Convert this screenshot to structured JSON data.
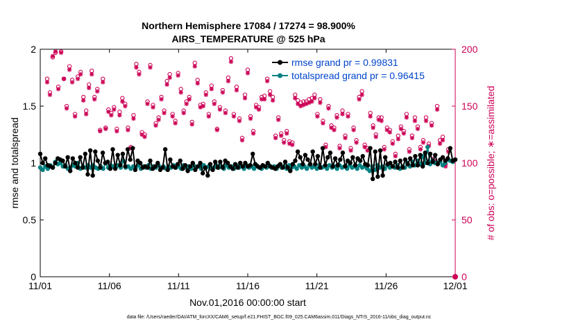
{
  "chart_data": {
    "type": "line",
    "title": "Northern Hemisphere 17084 / 17274 = 98.900%",
    "subtitle": "AIRS_TEMPERATURE @ 525 hPa",
    "xlabel": "Nov.01,2016 00:00:00 start",
    "ylabel": "rmse and totalspread",
    "ylabel_right": "# of obs: o=possible; ∗=assimilated",
    "x_ticks": [
      "11/01",
      "11/06",
      "11/11",
      "11/16",
      "11/21",
      "11/26",
      "12/01"
    ],
    "x_range_days": [
      0,
      30
    ],
    "ylim": [
      0,
      2
    ],
    "y_ticks": [
      "0",
      "0.5",
      "1",
      "1.5",
      "2"
    ],
    "ylim_right": [
      0,
      200
    ],
    "y_ticks_right": [
      "0",
      "50",
      "100",
      "150",
      "200"
    ],
    "footnote": "data file: /Users/raeder/DAI/ATM_forcXX/CAM6_setup/f.e21.FHIST_BGC.f09_025.CAM6assim.011/Diags_NTrS_2016-11/obs_diag_output.nc",
    "legend": [
      "rmse grand pr = 0.99831",
      "totalspread grand pr = 0.96415"
    ],
    "colors": {
      "rmse": "#000000",
      "spread": "#008080",
      "obs": "#cc0055"
    },
    "series": [
      {
        "name": "rmse",
        "values": [
          1.08,
          1.0,
          1.04,
          0.98,
          0.97,
          0.96,
          1.0,
          1.04,
          1.03,
          1.02,
          0.97,
          1.05,
          0.93,
          1.04,
          1.0,
          0.96,
          1.05,
          0.96,
          1.08,
          0.9,
          1.11,
          0.89,
          1.1,
          1.02,
          0.96,
          1.09,
          1.0,
          1.01,
          0.95,
          1.12,
          0.95,
          1.07,
          0.98,
          1.08,
          0.97,
          1.12,
          1.03,
          1.13,
          0.94,
          1.02,
          1.0,
          0.96,
          0.97,
          0.96,
          1.02,
          0.95,
          0.97,
          1.0,
          0.94,
          0.96,
          1.12,
          0.94,
          1.03,
          0.97,
          0.96,
          0.99,
          1.02,
          0.95,
          0.98,
          0.93,
          0.97,
          1.0,
          0.94,
          0.97,
          1.0,
          0.91,
          0.96,
          0.89,
          0.99,
          0.94,
          1.01,
          0.96,
          1.01,
          0.96,
          1.02,
          1.0,
          0.97,
          0.95,
          0.99,
          0.96,
          1.0,
          0.97,
          1.0,
          0.97,
          0.98,
          1.08,
          0.99,
          0.97,
          0.96,
          0.98,
          0.97,
          1.0,
          0.97,
          0.96,
          0.95,
          0.97,
          0.99,
          0.96,
          1.01,
          0.96,
          0.93,
          0.99,
          1.02,
          1.1,
          1.05,
          0.99,
          1.07,
          1.03,
          0.99,
          1.1,
          0.99,
          1.06,
          0.96,
          1.13,
          0.98,
          1.05,
          1.09,
          0.97,
          1.04,
          0.98,
          1.03,
          1.09,
          0.97,
          1.02,
          1.0,
          1.05,
          0.98,
          1.04,
          1.02,
          1.06,
          0.99,
          0.98,
          1.13,
          0.86,
          1.1,
          0.88,
          1.11,
          0.89,
          1.05,
          0.99,
          1.0,
          0.97,
          1.01,
          0.96,
          1.02,
          0.96,
          1.03,
          0.99,
          1.04,
          0.98,
          1.06,
          0.98,
          1.07,
          0.97,
          1.09,
          1.0,
          1.08,
          1.01,
          1.07,
          0.99,
          1.03,
          1.05,
          1.02,
          1.04,
          1.13,
          1.02,
          1.03
        ]
      },
      {
        "name": "totalspread",
        "values": [
          0.96,
          0.94,
          0.97,
          0.95,
          0.98,
          0.96,
          1.01,
          0.99,
          1.0,
          0.97,
          0.98,
          0.95,
          0.96,
          0.98,
          0.97,
          1.0,
          0.95,
          0.97,
          0.96,
          0.98,
          0.96,
          0.98,
          0.96,
          0.95,
          0.97,
          0.95,
          1.0,
          0.96,
          0.98,
          0.97,
          0.96,
          0.98,
          0.96,
          1.02,
          0.96,
          0.97,
          0.95,
          0.97,
          0.96,
          0.98,
          0.95,
          0.97,
          0.96,
          0.98,
          0.95,
          0.97,
          0.96,
          0.98,
          0.96,
          0.97,
          0.95,
          0.97,
          0.96,
          0.98,
          0.96,
          0.97,
          0.95,
          0.98,
          0.96,
          0.97,
          0.95,
          0.98,
          0.96,
          0.97,
          0.95,
          0.98,
          0.96,
          0.97,
          0.95,
          0.96,
          0.98,
          0.96,
          0.97,
          0.95,
          0.98,
          0.96,
          0.97,
          0.95,
          0.98,
          0.96,
          0.97,
          0.95,
          0.98,
          0.96,
          0.97,
          0.95,
          0.98,
          0.96,
          0.95,
          0.97,
          0.96,
          0.98,
          0.96,
          0.97,
          0.95,
          0.98,
          0.96,
          0.97,
          0.95,
          0.98,
          0.96,
          0.97,
          0.95,
          0.98,
          0.96,
          0.97,
          0.95,
          0.98,
          0.96,
          0.97,
          0.95,
          0.98,
          0.96,
          0.97,
          0.95,
          0.98,
          0.96,
          0.97,
          0.95,
          0.98,
          0.96,
          0.97,
          0.95,
          0.98,
          0.96,
          0.97,
          0.95,
          0.98,
          0.96,
          0.97,
          0.95,
          0.93,
          0.97,
          0.94,
          0.98,
          0.96,
          0.97,
          0.95,
          0.98,
          0.96,
          0.97,
          0.96,
          0.98,
          0.95,
          0.97,
          0.96,
          1.0,
          0.97,
          1.01,
          0.98,
          1.02,
          0.99,
          1.06,
          1.0,
          1.14,
          0.99,
          1.02,
          1.0,
          1.0,
          1.01,
          0.98,
          1.0,
          1.03,
          1.02,
          1.01,
          1.03
        ]
      },
      {
        "name": "obs_possible",
        "axis": "right",
        "values": [
          174,
          162,
          193,
          197,
          167,
          198,
          174,
          150,
          185,
          173,
          143,
          176,
          180,
          158,
          146,
          169,
          181,
          158,
          165,
          129,
          174,
          131,
          147,
          144,
          149,
          130,
          145,
          157,
          152,
          131,
          114,
          142,
          187,
          180,
          127,
          125,
          154,
          186,
          151,
          135,
          140,
          158,
          146,
          172,
          178,
          143,
          137,
          179,
          165,
          146,
          154,
          158,
          136,
          188,
          173,
          151,
          152,
          162,
          143,
          168,
          154,
          130,
          149,
          164,
          146,
          175,
          192,
          143,
          167,
          139,
          122,
          160,
          182,
          141,
          128,
          151,
          149,
          158,
          159,
          174,
          163,
          158,
          124,
          140,
          126,
          120,
          128,
          119,
          118,
          160,
          155,
          153,
          154,
          154,
          156,
          157,
          160,
          143,
          156,
          137,
          116,
          150,
          133,
          131,
          142,
          115,
          146,
          124,
          143,
          113,
          131,
          120,
          158,
          163,
          116,
          113,
          144,
          133,
          125,
          140,
          140,
          114,
          131,
          129,
          119,
          108,
          124,
          132,
          128,
          143,
          112,
          124,
          140,
          132,
          114,
          120,
          140,
          117,
          135,
          104,
          150,
          120,
          123,
          99,
          112
        ]
      },
      {
        "name": "obs_assimilated",
        "axis": "right",
        "values": [
          171,
          160,
          194,
          198,
          165,
          197,
          174,
          148,
          182,
          171,
          141,
          174,
          178,
          155,
          143,
          166,
          178,
          156,
          163,
          128,
          171,
          130,
          145,
          142,
          147,
          128,
          142,
          154,
          150,
          129,
          113,
          139,
          184,
          178,
          125,
          123,
          152,
          184,
          149,
          133,
          138,
          156,
          144,
          169,
          175,
          141,
          135,
          177,
          162,
          144,
          152,
          156,
          134,
          185,
          170,
          149,
          150,
          160,
          141,
          165,
          152,
          129,
          147,
          162,
          144,
          172,
          189,
          141,
          164,
          137,
          120,
          157,
          179,
          139,
          126,
          149,
          147,
          156,
          156,
          172,
          160,
          155,
          122,
          138,
          124,
          118,
          126,
          117,
          116,
          157,
          152,
          150,
          151,
          152,
          153,
          154,
          157,
          141,
          153,
          135,
          114,
          148,
          131,
          129,
          140,
          113,
          143,
          122,
          141,
          111,
          129,
          118,
          156,
          160,
          114,
          111,
          141,
          131,
          123,
          138,
          137,
          112,
          129,
          127,
          117,
          106,
          121,
          130,
          126,
          140,
          110,
          122,
          137,
          130,
          112,
          118,
          137,
          115,
          133,
          102,
          147,
          117,
          120,
          97,
          110
        ]
      }
    ]
  }
}
